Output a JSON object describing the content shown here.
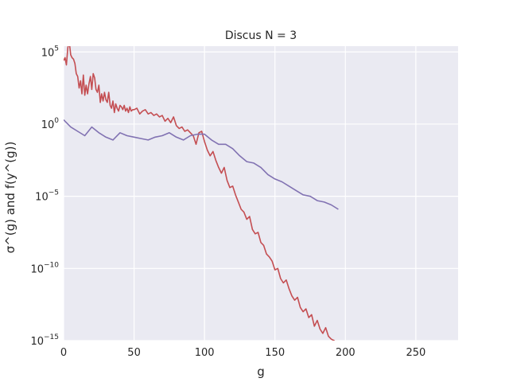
{
  "chart_data": {
    "type": "line",
    "title": "Discus N = 3",
    "xlabel": "g",
    "ylabel": "σ^(g)  and  f(y^(g))",
    "xlim": [
      0,
      280
    ],
    "yscale": "log",
    "ylim_exp": [
      -15,
      5.4
    ],
    "x_ticks": [
      0,
      50,
      100,
      150,
      200,
      250
    ],
    "y_ticks": [
      {
        "base": "10",
        "exp": "5",
        "value_exp": 5
      },
      {
        "base": "10",
        "exp": "0",
        "value_exp": 0
      },
      {
        "base": "10",
        "exp": "−5",
        "value_exp": -5
      },
      {
        "base": "10",
        "exp": "−10",
        "value_exp": -10
      },
      {
        "base": "10",
        "exp": "−15",
        "value_exp": -15
      }
    ],
    "grid": true,
    "background": "#eaeaf2",
    "series": [
      {
        "color": "#c44e52",
        "x": [
          0,
          1,
          2,
          3,
          4,
          5,
          6,
          7,
          8,
          9,
          10,
          11,
          12,
          13,
          14,
          15,
          16,
          17,
          18,
          19,
          20,
          21,
          22,
          23,
          24,
          25,
          26,
          27,
          28,
          29,
          30,
          31,
          32,
          33,
          34,
          35,
          36,
          37,
          38,
          39,
          40,
          41,
          42,
          43,
          44,
          45,
          46,
          47,
          48,
          49,
          50,
          52,
          54,
          56,
          58,
          60,
          62,
          64,
          66,
          68,
          70,
          72,
          74,
          76,
          78,
          80,
          82,
          84,
          86,
          88,
          90,
          92,
          94,
          96,
          98,
          100,
          102,
          104,
          106,
          108,
          110,
          112,
          114,
          116,
          118,
          120,
          122,
          124,
          126,
          128,
          130,
          132,
          134,
          136,
          138,
          140,
          142,
          144,
          146,
          148,
          150,
          152,
          154,
          156,
          158,
          160,
          162,
          164,
          166,
          168,
          170,
          172,
          174,
          176,
          178,
          180,
          182,
          184,
          186,
          188,
          190,
          192,
          194,
          196
        ],
        "y_log10": [
          4.4,
          4.6,
          4.1,
          5.3,
          5.7,
          4.8,
          4.6,
          4.5,
          4.2,
          3.5,
          3.3,
          2.5,
          3.0,
          2.1,
          3.4,
          2.0,
          2.7,
          2.1,
          2.8,
          3.3,
          2.4,
          3.5,
          3.2,
          2.4,
          2.2,
          2.7,
          1.5,
          2.1,
          1.6,
          2.2,
          1.7,
          1.5,
          2.2,
          1.3,
          1.1,
          1.6,
          0.8,
          1.4,
          1.1,
          0.9,
          1.3,
          1.2,
          1.0,
          1.3,
          0.9,
          1.1,
          0.8,
          1.2,
          0.9,
          1.0,
          1.0,
          1.1,
          0.7,
          0.9,
          1.0,
          0.7,
          0.8,
          0.6,
          0.7,
          0.5,
          0.6,
          0.2,
          0.4,
          0.1,
          0.5,
          -0.1,
          -0.3,
          -0.2,
          -0.5,
          -0.4,
          -0.6,
          -0.8,
          -1.4,
          -0.6,
          -0.5,
          -1.2,
          -1.8,
          -2.2,
          -1.9,
          -2.5,
          -3.0,
          -3.4,
          -3.0,
          -3.9,
          -4.4,
          -4.3,
          -4.9,
          -5.4,
          -5.9,
          -6.1,
          -6.6,
          -6.4,
          -7.3,
          -7.6,
          -7.5,
          -8.2,
          -8.4,
          -9.0,
          -9.2,
          -9.5,
          -10.1,
          -10.0,
          -10.7,
          -11.0,
          -10.8,
          -11.4,
          -11.9,
          -12.2,
          -12.0,
          -12.7,
          -13.0,
          -12.8,
          -13.4,
          -13.2,
          -14.0,
          -13.6,
          -14.2,
          -14.5,
          -14.1,
          -14.7,
          -14.9,
          -15.0,
          -15.2,
          -15.4
        ]
      },
      {
        "color": "#8172b2",
        "x": [
          0,
          5,
          10,
          15,
          20,
          25,
          30,
          35,
          40,
          45,
          50,
          55,
          60,
          65,
          70,
          75,
          80,
          85,
          90,
          95,
          100,
          105,
          110,
          115,
          120,
          125,
          130,
          135,
          140,
          145,
          150,
          155,
          160,
          165,
          170,
          175,
          180,
          185,
          190,
          195
        ],
        "y_log10": [
          0.3,
          -0.2,
          -0.5,
          -0.8,
          -0.2,
          -0.6,
          -0.9,
          -1.1,
          -0.6,
          -0.8,
          -0.9,
          -1.0,
          -1.1,
          -0.9,
          -0.8,
          -0.6,
          -0.9,
          -1.1,
          -0.8,
          -0.7,
          -0.7,
          -1.1,
          -1.4,
          -1.4,
          -1.7,
          -2.2,
          -2.6,
          -2.7,
          -3.0,
          -3.5,
          -3.8,
          -4.0,
          -4.3,
          -4.6,
          -4.9,
          -5.0,
          -5.3,
          -5.4,
          -5.6,
          -5.9
        ]
      }
    ]
  }
}
